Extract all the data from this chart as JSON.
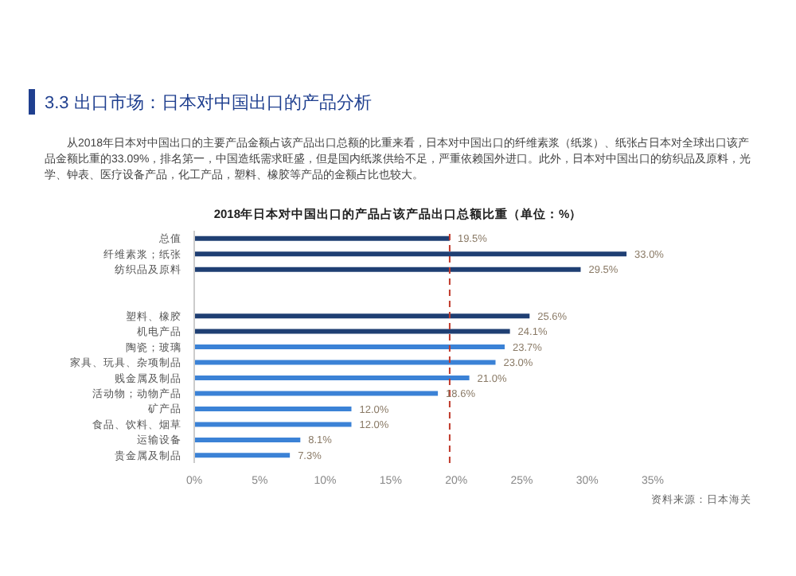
{
  "chart_data": {
    "type": "bar",
    "orientation": "horizontal",
    "title": "2018年日本对中国出口的产品占该产品出口总额比重（单位：%）",
    "annotations": [
      "3.3 出口市场：日本对中国出口的产品分析",
      "从2018年日本对中国出口的主要产品金额占该产品出口总额的比重来看，日本对中国出口的纤维素浆（纸浆）、纸张占日本对全球出口该产品金额比重的33.09%，排名第一，中国造纸需求旺盛，但是国内纸浆供给不足，严重依赖国外进口。此外，日本对中国出口的纺织品及原料，光学、钟表、医疗设备产品，化工产品，塑料、橡胶等产品的金额占比也较大。",
      "资料来源：日本海关"
    ],
    "categories": [
      "总值",
      "纤维素浆；纸张",
      "纺织品及原料",
      null,
      null,
      "塑料、橡胶",
      "机电产品",
      "陶瓷；玻璃",
      "家具、玩具、杂项制品",
      "贱金属及制品",
      "活动物；动物产品",
      "矿产品",
      "食品、饮料、烟草",
      "运输设备",
      "贵金属及制品"
    ],
    "values": [
      19.5,
      33.0,
      29.5,
      null,
      null,
      25.6,
      24.1,
      23.7,
      23.0,
      21.0,
      18.6,
      12.0,
      12.0,
      8.1,
      7.3
    ],
    "value_labels": [
      "19.5%",
      "33.0%",
      "29.5%",
      null,
      null,
      "25.6%",
      "24.1%",
      "23.7%",
      "23.0%",
      "21.0%",
      "18.6%",
      "12.0%",
      "12.0%",
      "8.1%",
      "7.3%"
    ],
    "colors": [
      "#1f3f73",
      "#1f3f73",
      "#1f3f73",
      "#1f3f73",
      "#1f3f73",
      "#1f3f73",
      "#1f3f73",
      "#3b82d6",
      "#3b82d6",
      "#3b82d6",
      "#3b82d6",
      "#3b82d6",
      "#3b82d6",
      "#3b82d6",
      "#3b82d6"
    ],
    "xlim": [
      0,
      35
    ],
    "xticks": [
      {
        "value": 0,
        "label": "0%"
      },
      {
        "value": 5,
        "label": "5%"
      },
      {
        "value": 10,
        "label": "10%"
      },
      {
        "value": 15,
        "label": "15%"
      },
      {
        "value": 20,
        "label": "20%"
      },
      {
        "value": 25,
        "label": "25%"
      },
      {
        "value": 30,
        "label": "30%"
      },
      {
        "value": 35,
        "label": "35%"
      }
    ],
    "ref_lines": [
      {
        "axis": "x",
        "value": 19.5,
        "color": "#c0392b",
        "line_style": "dashed"
      }
    ],
    "grid": false
  }
}
